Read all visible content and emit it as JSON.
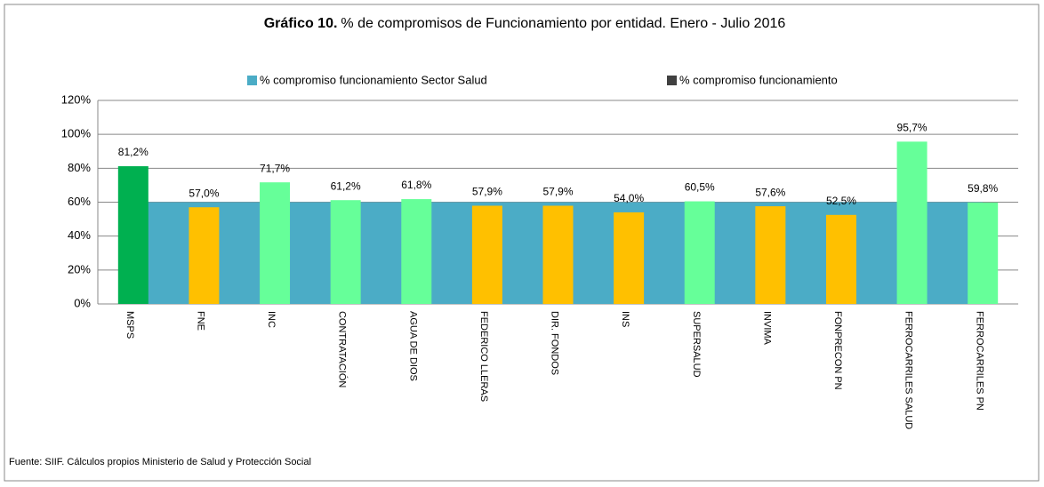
{
  "chart_data": {
    "type": "bar",
    "title_bold": "Gráfico 10.",
    "title": "% de compromisos de Funcionamiento por entidad.  Enero - Julio 2016",
    "source": "Fuente: SIIF. Cálculos propios Ministerio de Salud y Protección Social",
    "categories": [
      "MSPS",
      "FNE",
      "INC",
      "CONTRATACIÓN",
      "AGUA DE DIOS",
      "FEDERICO LLERAS",
      "DIR. FONDOS",
      "INS",
      "SUPERSALUD",
      "INVIMA",
      "FONPRECON PN",
      "FERROCARRILES SALUD",
      "FERROCARRILES PN"
    ],
    "series": [
      {
        "name": "% compromiso  funcionamiento Sector Salud",
        "color": "#4bacc6",
        "kind": "area",
        "values": [
          60,
          60,
          60,
          60,
          60,
          60,
          60,
          60,
          60,
          60,
          60,
          60,
          60
        ]
      },
      {
        "name": "% compromiso funcionamiento",
        "color": "#404040",
        "kind": "bar",
        "colors": [
          "#00b050",
          "#ffc000",
          "#66ff99",
          "#66ff99",
          "#66ff99",
          "#ffc000",
          "#ffc000",
          "#ffc000",
          "#66ff99",
          "#ffc000",
          "#ffc000",
          "#66ff99",
          "#66ff99"
        ],
        "values": [
          81.2,
          57.0,
          71.7,
          61.2,
          61.8,
          57.9,
          57.9,
          54.0,
          60.5,
          57.6,
          52.5,
          95.7,
          59.8
        ],
        "value_labels": [
          "81,2%",
          "57,0%",
          "71,7%",
          "61,2%",
          "61,8%",
          "57,9%",
          "57,9%",
          "54,0%",
          "60,5%",
          "57,6%",
          "52,5%",
          "95,7%",
          "59,8%"
        ]
      }
    ],
    "ylim": [
      0,
      120
    ],
    "yticks": [
      {
        "value": 0,
        "label": "0%"
      },
      {
        "value": 20,
        "label": "20%"
      },
      {
        "value": 40,
        "label": "40%"
      },
      {
        "value": 60,
        "label": "60%"
      },
      {
        "value": 80,
        "label": "80%"
      },
      {
        "value": 100,
        "label": "100%"
      },
      {
        "value": 120,
        "label": "120%"
      }
    ],
    "grid": true
  }
}
